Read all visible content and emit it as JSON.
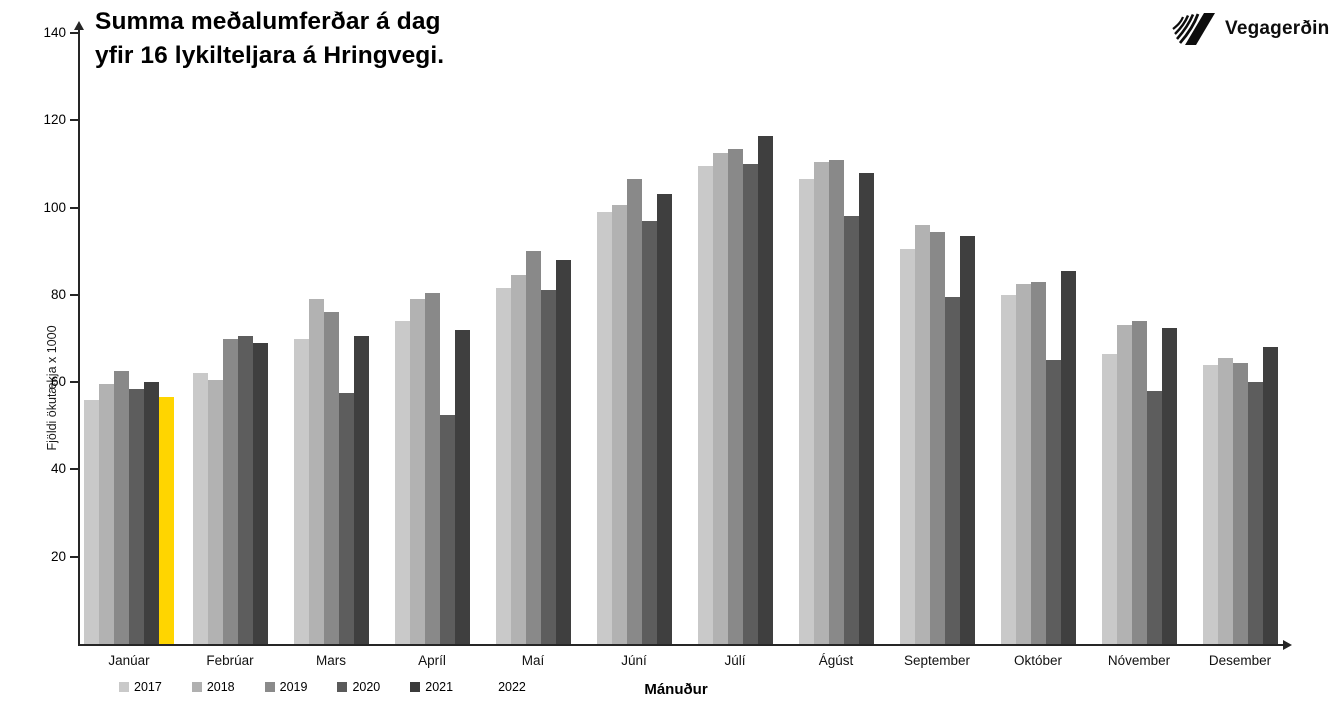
{
  "header": {
    "title_line1": "Summa meðalumferðar á dag",
    "title_line2": "yfir 16 lykilteljara á Hringvegi.",
    "logo_text": "Vegagerðin"
  },
  "chart_data": {
    "type": "bar",
    "title": "Summa meðalumferðar á dag yfir 16 lykilteljara á Hringvegi.",
    "xlabel": "Mánuður",
    "ylabel": "Fjöldi ökutækja x 1000",
    "ylim": [
      0,
      140
    ],
    "yticks": [
      20,
      40,
      60,
      80,
      100,
      120,
      140
    ],
    "grid": false,
    "legend_position": "bottom-left",
    "categories": [
      "Janúar",
      "Febrúar",
      "Mars",
      "Apríl",
      "Maí",
      "Júní",
      "Júlí",
      "Ágúst",
      "September",
      "Október",
      "Nóvember",
      "Desember"
    ],
    "series": [
      {
        "name": "2017",
        "color": "#c9c9c9",
        "legend_swatch": "#c9c9c9",
        "values": [
          56,
          62,
          70,
          74,
          81.5,
          99,
          109.5,
          106.5,
          90.5,
          80,
          66.5,
          64
        ]
      },
      {
        "name": "2018",
        "color": "#b2b2b2",
        "legend_swatch": "#b0b0b0",
        "values": [
          59.5,
          60.5,
          79,
          79,
          84.5,
          100.5,
          112.5,
          110.5,
          96,
          82.5,
          73,
          65.5
        ]
      },
      {
        "name": "2019",
        "color": "#898989",
        "legend_swatch": "#8a8a8a",
        "values": [
          62.5,
          70,
          76,
          80.5,
          90,
          106.5,
          113.5,
          111,
          94.5,
          83,
          74,
          64.5
        ]
      },
      {
        "name": "2020",
        "color": "#5d5d5d",
        "legend_swatch": "#5a5a5a",
        "values": [
          58.5,
          70.5,
          57.5,
          52.5,
          81,
          97,
          110,
          98,
          79.5,
          65,
          58,
          60
        ]
      },
      {
        "name": "2021",
        "color": "#3f3f3f",
        "legend_swatch": "#3b3b3b",
        "values": [
          60,
          69,
          70.5,
          72,
          88,
          103,
          116.5,
          108,
          93.5,
          85.5,
          72.5,
          68
        ]
      },
      {
        "name": "2022",
        "color": "#ffd500",
        "legend_swatch": "none",
        "values": [
          56.5,
          null,
          null,
          null,
          null,
          null,
          null,
          null,
          null,
          null,
          null,
          null
        ]
      }
    ]
  }
}
